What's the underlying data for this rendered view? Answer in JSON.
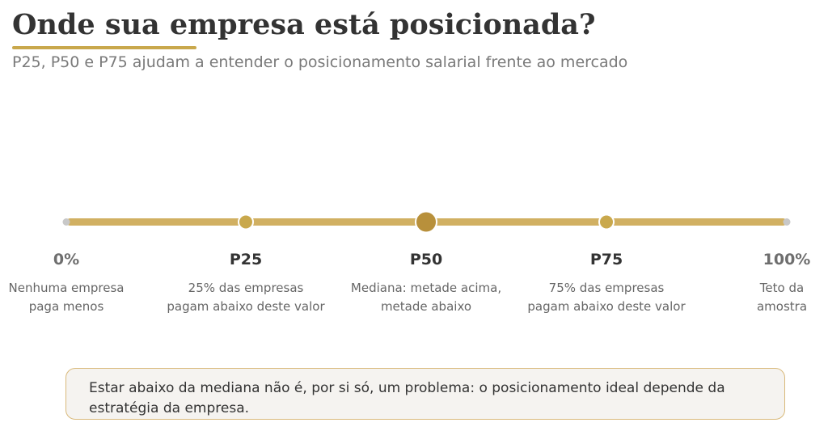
{
  "header": {
    "title": "Onde sua empresa está posicionada?",
    "subtitle": "P25, P50 e P75 ajudam a entender o posicionamento salarial frente ao mercado"
  },
  "scale": {
    "colors": {
      "track": "#d1b062",
      "marker": "#c9a84c",
      "median": "#b8903b",
      "end": "#c8c8c8"
    },
    "stops": [
      {
        "label": "0%",
        "desc1": "Nenhuma empresa",
        "desc2": "paga menos",
        "value": 0
      },
      {
        "label": "P25",
        "desc1": "25% das empresas",
        "desc2": "pagam abaixo deste valor",
        "value": 25
      },
      {
        "label": "P50",
        "desc1": "Mediana: metade acima,",
        "desc2": "metade abaixo",
        "value": 50
      },
      {
        "label": "P75",
        "desc1": "75% das empresas",
        "desc2": "pagam abaixo deste valor",
        "value": 75
      },
      {
        "label": "100%",
        "desc1": "Teto da",
        "desc2": "amostra",
        "value": 100
      }
    ]
  },
  "note": {
    "text": "Estar abaixo da mediana não é, por si só, um problema: o posicionamento ideal depende da estratégia da empresa."
  }
}
